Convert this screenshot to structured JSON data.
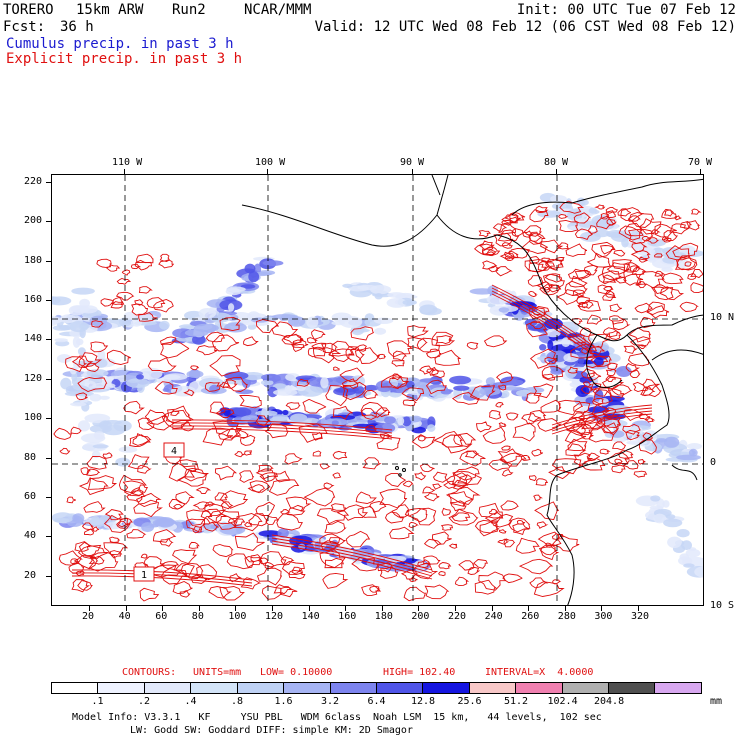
{
  "header": {
    "model": "TORERO",
    "resolution": "15km ARW",
    "run": "Run2",
    "org": "NCAR/MMM",
    "init": "Init: 00 UTC Tue 07 Feb 12",
    "fcst_label": "Fcst:",
    "fcst_value": "36 h",
    "valid": "Valid: 12 UTC Wed 08 Feb 12 (06 CST Wed 08 Feb 12)",
    "field_blue": "Cumulus precip. in past 3 h",
    "field_red": "Explicit precip. in past 3 h"
  },
  "map": {
    "top_lon_labels": [
      "110 W",
      "100 W",
      "90 W",
      "80 W",
      "70 W"
    ],
    "right_lat_labels": [
      "10 N",
      "0",
      "10 S"
    ],
    "left_y_labels": [
      "220",
      "200",
      "180",
      "160",
      "140",
      "120",
      "100",
      "80",
      "60",
      "40",
      "20"
    ],
    "bottom_x_labels": [
      "20",
      "40",
      "60",
      "80",
      "100",
      "120",
      "140",
      "160",
      "180",
      "200",
      "220",
      "240",
      "260",
      "280",
      "300",
      "320"
    ],
    "contour_tags": [
      "4",
      "1"
    ],
    "colors": {
      "coast": "#000000",
      "contour": "#e01010",
      "grid": "#000000"
    }
  },
  "legend": {
    "contours_label": "CONTOURS:",
    "units": "UNITS=mm",
    "low": "LOW= 0.10000",
    "high": "HIGH= 102.40",
    "interval": "INTERVAL=X  4.0000",
    "levels": [
      ".1",
      ".2",
      ".4",
      ".8",
      "1.6",
      "3.2",
      "6.4",
      "12.8",
      "25.6",
      "51.2",
      "102.4",
      "204.8"
    ],
    "unit_suffix": "mm",
    "colors": [
      "#ffffff",
      "#eef2ff",
      "#e2e9fb",
      "#d3e4f8",
      "#bfd2f5",
      "#a6b4f3",
      "#7d84ee",
      "#5055e8",
      "#1515e0",
      "#f8c8c8",
      "#f080b0",
      "#b0b0b0",
      "#505050",
      "#d8a8f0"
    ]
  },
  "footer": {
    "line1": "Model Info: V3.3.1   KF     YSU PBL   WDM 6class  Noah LSM  15 km,   44 levels,  102 sec",
    "line2": "LW: Godd SW: Goddard DIFF: simple KM: 2D Smagor"
  }
}
